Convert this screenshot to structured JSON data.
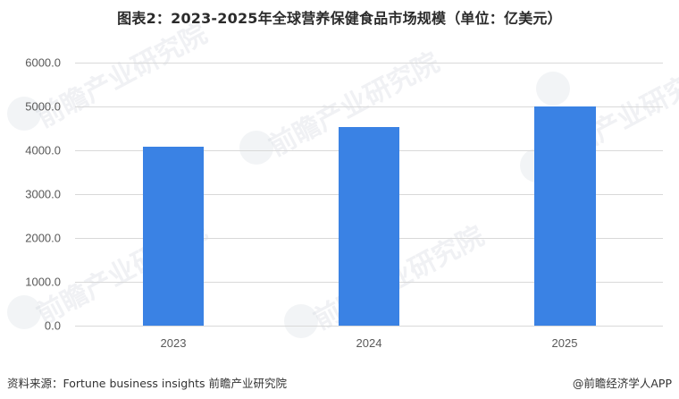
{
  "title": "图表2：2023-2025年全球营养保健食品市场规模（单位：亿美元）",
  "chart_data": {
    "type": "bar",
    "title": "图表2：2023-2025年全球营养保健食品市场规模（单位：亿美元）",
    "categories": [
      "2023",
      "2024",
      "2025"
    ],
    "values": [
      4080,
      4525,
      5010
    ],
    "xlabel": "",
    "ylabel": "亿美元",
    "ylim": [
      0,
      6000
    ],
    "yticks": [
      "0.0",
      "1000.0",
      "2000.0",
      "3000.0",
      "4000.0",
      "5000.0",
      "6000.0"
    ],
    "grid": true,
    "legend": null,
    "bar_color": "#3a82e4"
  },
  "footer": {
    "source": "资料来源：Fortune business insights  前瞻产业研究院",
    "credit": "@前瞻经济学人APP"
  },
  "watermark": "前瞻产业研究院"
}
